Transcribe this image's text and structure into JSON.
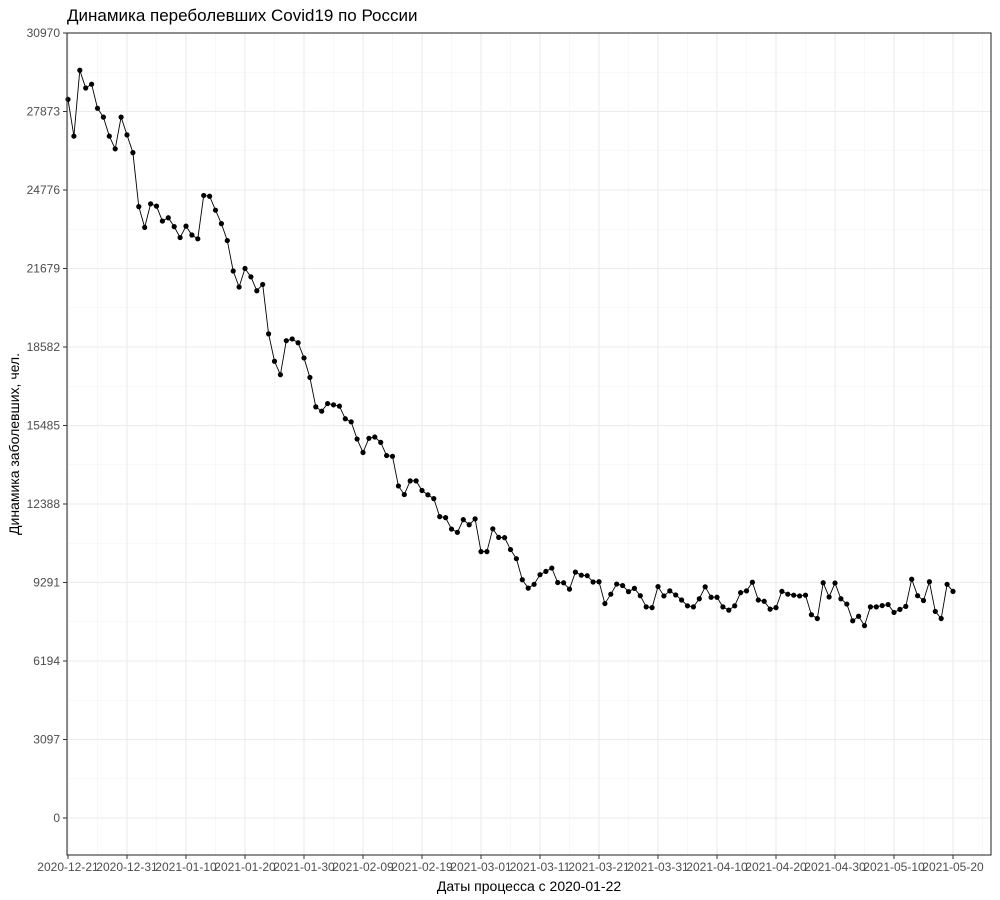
{
  "chart_data": {
    "type": "line",
    "title": "Динамика переболевших Covid19 по России",
    "xlabel": "Даты процесса с 2020-01-22",
    "ylabel": "Динамика заболевших, чел.",
    "ylim": [
      0,
      30970
    ],
    "y_ticks": [
      "0",
      "3097",
      "6194",
      "9291",
      "12388",
      "15485",
      "18582",
      "21679",
      "24776",
      "27873",
      "30970"
    ],
    "x_ticks": [
      "2020-12-21",
      "2020-12-31",
      "2021-01-10",
      "2021-01-20",
      "2021-01-30",
      "2021-02-09",
      "2021-02-19",
      "2021-03-01",
      "2021-03-11",
      "2021-03-21",
      "2021-03-31",
      "2021-04-10",
      "2021-04-20",
      "2021-04-30",
      "2021-05-10",
      "2021-05-20"
    ],
    "x_start": "2020-12-21",
    "grid": true,
    "series": [
      {
        "values": [
          28350,
          26900,
          29500,
          28800,
          28950,
          28000,
          27650,
          26900,
          26400,
          27650,
          26950,
          26250,
          24120,
          23300,
          24230,
          24140,
          23550,
          23680,
          23330,
          22900,
          23350,
          23000,
          22850,
          24560,
          24530,
          23980,
          23450,
          22780,
          21580,
          20950,
          21680,
          21350,
          20800,
          21050,
          19100,
          18020,
          17490,
          18830,
          18900,
          18750,
          18150,
          17380,
          16220,
          16050,
          16350,
          16300,
          16250,
          15750,
          15630,
          14950,
          14420,
          14980,
          15030,
          14820,
          14300,
          14270,
          13100,
          12760,
          13300,
          13300,
          12920,
          12750,
          12600,
          11890,
          11850,
          11400,
          11270,
          11770,
          11570,
          11800,
          10510,
          10510,
          11410,
          11070,
          11060,
          10590,
          10230,
          9400,
          9070,
          9220,
          9600,
          9730,
          9860,
          9290,
          9280,
          9030,
          9700,
          9580,
          9560,
          9310,
          9320,
          8460,
          8830,
          9230,
          9170,
          8930,
          9060,
          8770,
          8330,
          8300,
          9130,
          8760,
          8960,
          8800,
          8600,
          8370,
          8330,
          8650,
          9120,
          8710,
          8710,
          8330,
          8200,
          8370,
          8890,
          8960,
          9300,
          8600,
          8550,
          8240,
          8300,
          8940,
          8830,
          8790,
          8760,
          8790,
          8020,
          7870,
          9280,
          8720,
          9270,
          8650,
          8440,
          7780,
          7960,
          7590,
          8330,
          8330,
          8380,
          8420,
          8110,
          8230,
          8350,
          9420,
          8770,
          8580,
          9320,
          8150,
          7870,
          9220,
          8940
        ]
      }
    ]
  }
}
